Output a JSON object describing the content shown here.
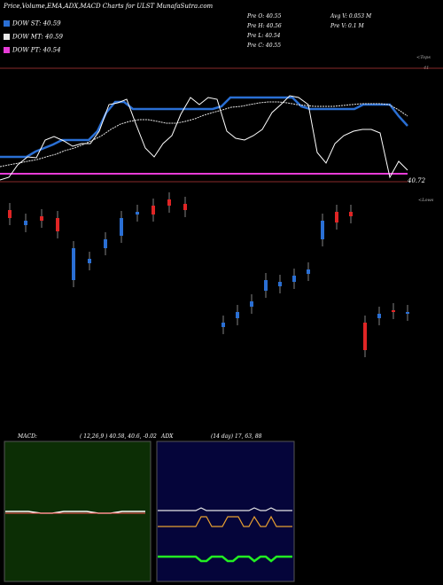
{
  "title": "Price,Volume,EMA,ADX,MACD Charts for ULST MunafaSutra.com",
  "legend": [
    {
      "label": "DOW ST: 40.59",
      "color": "#2a6fd4"
    },
    {
      "label": "DOW MT: 40.59",
      "color": "#e8e8e8"
    },
    {
      "label": "DOW PT: 40.54",
      "color": "#e83cd8"
    }
  ],
  "stats": {
    "col1": [
      "Pre O: 40.55",
      "Pre H: 40.56",
      "Pre L: 40.54",
      "Pre C: 40.55"
    ],
    "col2": [
      "Avg V: 0.053 M",
      "Pre V: 0.1 M"
    ]
  },
  "upper": {
    "top_tag": "<Tops",
    "top_value": "41",
    "bottom_value": "40.72",
    "lower_tag": "<Lows"
  },
  "panels": {
    "macd_label": "MACD:",
    "macd_params": "( 12,26,9 ) 40.58, 40.6, -0.02",
    "adx_label": "ADX",
    "adx_params": "(14 day) 17, 63, 88"
  },
  "chart_data": [
    {
      "type": "line",
      "name": "Price/EMA overlay",
      "series": [
        {
          "name": "DOW ST",
          "color": "#2a6fd4",
          "values": [
            0.3,
            0.3,
            0.3,
            0.3,
            0.36,
            0.4,
            0.44,
            0.5,
            0.5,
            0.5,
            0.5,
            0.6,
            0.82,
            0.95,
            0.95,
            0.86,
            0.86,
            0.86,
            0.86,
            0.86,
            0.86,
            0.86,
            0.86,
            0.86,
            0.86,
            0.9,
            1.0,
            1.0,
            1.0,
            1.0,
            1.0,
            1.0,
            1.0,
            1.0,
            0.9,
            0.86,
            0.86,
            0.86,
            0.86,
            0.86,
            0.86,
            0.92,
            0.92,
            0.92,
            0.92,
            0.78,
            0.66
          ]
        },
        {
          "name": "DOW MT",
          "color": "#e8e8e8",
          "values": [
            0.18,
            0.2,
            0.22,
            0.24,
            0.26,
            0.3,
            0.33,
            0.37,
            0.4,
            0.44,
            0.5,
            0.55,
            0.62,
            0.68,
            0.72,
            0.74,
            0.74,
            0.72,
            0.7,
            0.7,
            0.72,
            0.75,
            0.79,
            0.82,
            0.85,
            0.88,
            0.9,
            0.92,
            0.94,
            0.95,
            0.95,
            0.94,
            0.92,
            0.91,
            0.9,
            0.9,
            0.9,
            0.91,
            0.92,
            0.93,
            0.93,
            0.93,
            0.92,
            0.85,
            0.78
          ]
        },
        {
          "name": "DOW PT",
          "color": "#e83cd8",
          "values": [
            0.1,
            0.1,
            0.1,
            0.1,
            0.1,
            0.1,
            0.1,
            0.1,
            0.1,
            0.1,
            0.1,
            0.1,
            0.1,
            0.1,
            0.1,
            0.1,
            0.1,
            0.1,
            0.1,
            0.1,
            0.1,
            0.1,
            0.1,
            0.1,
            0.1,
            0.1,
            0.1,
            0.1,
            0.1,
            0.1,
            0.1,
            0.1,
            0.1,
            0.1,
            0.1,
            0.1,
            0.1,
            0.1,
            0.1,
            0.1,
            0.1,
            0.1,
            0.1,
            0.1,
            0.1
          ]
        },
        {
          "name": "Price",
          "color": "#ffffff",
          "values": [
            0.02,
            0.05,
            0.2,
            0.3,
            0.28,
            0.5,
            0.54,
            0.48,
            0.42,
            0.45,
            0.45,
            0.6,
            0.92,
            0.94,
            0.98,
            0.7,
            0.4,
            0.3,
            0.45,
            0.55,
            0.8,
            1.0,
            0.92,
            1.0,
            0.98,
            0.6,
            0.52,
            0.5,
            0.55,
            0.62,
            0.82,
            0.92,
            1.02,
            1.0,
            0.92,
            0.35,
            0.22,
            0.45,
            0.55,
            0.6,
            0.62,
            0.62,
            0.58,
            0.05,
            0.24,
            0.14
          ]
        }
      ]
    },
    {
      "type": "bar",
      "name": "candles",
      "values": [
        {
          "o": 0.86,
          "c": 0.78,
          "up": false
        },
        {
          "o": 0.76,
          "c": 0.72,
          "up": true
        },
        {
          "o": 0.8,
          "c": 0.76,
          "up": false
        },
        {
          "o": 0.78,
          "c": 0.66,
          "up": false
        },
        {
          "o": 0.2,
          "c": 0.5,
          "up": true
        },
        {
          "o": 0.36,
          "c": 0.4,
          "up": true
        },
        {
          "o": 0.5,
          "c": 0.58,
          "up": true
        },
        {
          "o": 0.62,
          "c": 0.78,
          "up": true
        },
        {
          "o": 0.82,
          "c": 0.84,
          "up": true
        },
        {
          "o": 0.9,
          "c": 0.82,
          "up": false
        },
        {
          "o": 0.96,
          "c": 0.9,
          "up": false
        },
        {
          "o": 0.92,
          "c": 0.86,
          "up": false
        },
        {
          "o": -0.24,
          "c": -0.2,
          "up": true
        },
        {
          "o": -0.16,
          "c": -0.1,
          "up": true
        },
        {
          "o": -0.05,
          "c": 0.0,
          "up": true
        },
        {
          "o": 0.1,
          "c": 0.2,
          "up": true
        },
        {
          "o": 0.14,
          "c": 0.18,
          "up": true
        },
        {
          "o": 0.18,
          "c": 0.24,
          "up": true
        },
        {
          "o": 0.26,
          "c": 0.3,
          "up": true
        },
        {
          "o": 0.58,
          "c": 0.76,
          "up": true
        },
        {
          "o": 0.74,
          "c": 0.84,
          "up": false
        },
        {
          "o": 0.84,
          "c": 0.8,
          "up": false
        },
        {
          "o": -0.46,
          "c": -0.2,
          "up": false
        },
        {
          "o": -0.16,
          "c": -0.12,
          "up": true
        },
        {
          "o": -0.1,
          "c": -0.08,
          "up": false
        },
        {
          "o": -0.12,
          "c": -0.1,
          "up": true
        }
      ]
    },
    {
      "type": "line",
      "name": "MACD",
      "series": [
        {
          "name": "MACD",
          "color": "#ffffff",
          "values": [
            0.01,
            0.01,
            0.01,
            0.0,
            0.0,
            0.01,
            0.01,
            0.01,
            0.0,
            0.0,
            0.01,
            0.01,
            0.01
          ]
        },
        {
          "name": "Signal",
          "color": "#ff5555",
          "values": [
            0.0,
            0.0,
            0.0,
            0.0,
            0.0,
            0.0,
            0.0,
            0.0,
            0.0,
            0.0,
            0.0,
            0.0,
            0.0
          ]
        }
      ]
    },
    {
      "type": "line",
      "name": "ADX",
      "series": [
        {
          "name": "DI+",
          "color": "#e8e8e8",
          "values": [
            88,
            88,
            88,
            88,
            88,
            88,
            88,
            88,
            92,
            88,
            88,
            88,
            88,
            88,
            88,
            88,
            88,
            88,
            92,
            88,
            88,
            92,
            88,
            88,
            88,
            88
          ]
        },
        {
          "name": "DI-",
          "color": "#e8a030",
          "values": [
            63,
            63,
            63,
            63,
            63,
            63,
            63,
            63,
            78,
            78,
            63,
            63,
            63,
            78,
            78,
            78,
            63,
            63,
            78,
            63,
            63,
            78,
            63,
            63,
            63,
            63
          ]
        },
        {
          "name": "ADX",
          "color": "#22ee22",
          "values": [
            17,
            17,
            17,
            17,
            17,
            17,
            17,
            17,
            10,
            10,
            17,
            17,
            17,
            10,
            10,
            17,
            17,
            17,
            10,
            17,
            17,
            10,
            17,
            17,
            17,
            17
          ]
        }
      ]
    }
  ]
}
